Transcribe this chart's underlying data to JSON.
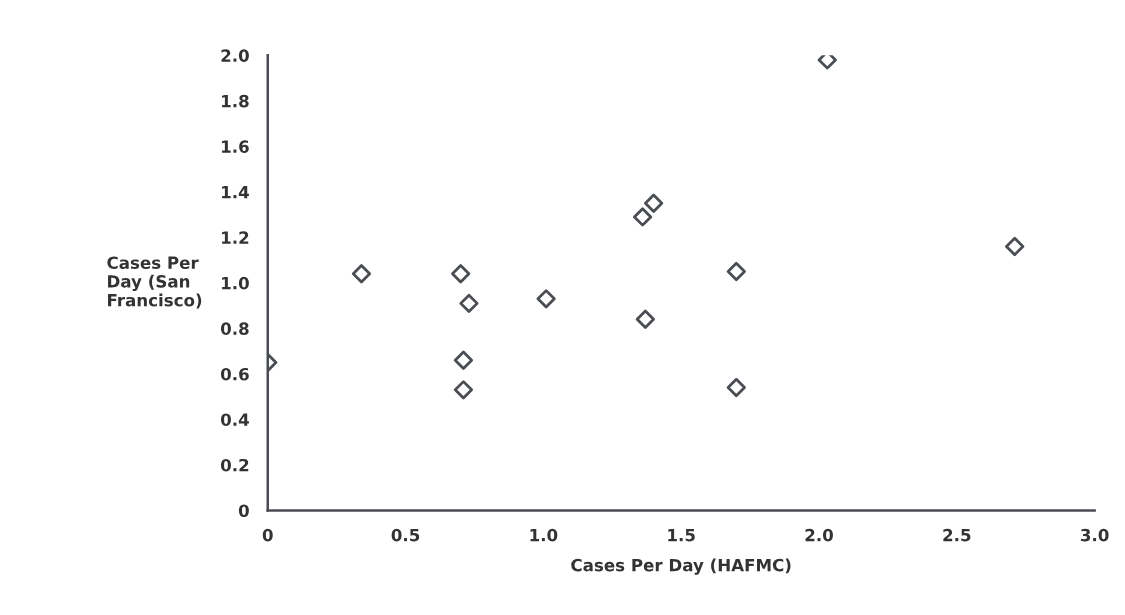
{
  "chart_data": {
    "type": "scatter",
    "xlabel": "Cases Per Day (HAFMC)",
    "ylabel": "Cases Per\nDay (San\nFrancisco)",
    "x": [
      0,
      0.34,
      0.7,
      0.73,
      0.71,
      0.71,
      1.01,
      1.36,
      1.4,
      1.37,
      1.7,
      1.7,
      2.03,
      2.71
    ],
    "values": [
      0.65,
      1.04,
      1.04,
      0.91,
      0.66,
      0.53,
      0.93,
      1.29,
      1.35,
      0.84,
      1.05,
      0.54,
      1.98,
      1.16
    ],
    "color": "#4a4d52",
    "marker": "diamond",
    "xlim": [
      0,
      3
    ],
    "xticks": [
      0,
      0.5,
      {
        "value": 1,
        "label": "1.0"
      },
      1.5,
      {
        "value": 2,
        "label": "2.0"
      },
      2.5,
      {
        "value": 3,
        "label": "3.0"
      }
    ],
    "ylim": [
      0,
      2
    ],
    "yticks": [
      0,
      0.2,
      0.4,
      0.6,
      0.8,
      {
        "value": 1,
        "label": "1.0"
      },
      1.2,
      1.4,
      1.6,
      1.8,
      {
        "value": 2,
        "label": "2.0"
      }
    ],
    "grid": false
  }
}
